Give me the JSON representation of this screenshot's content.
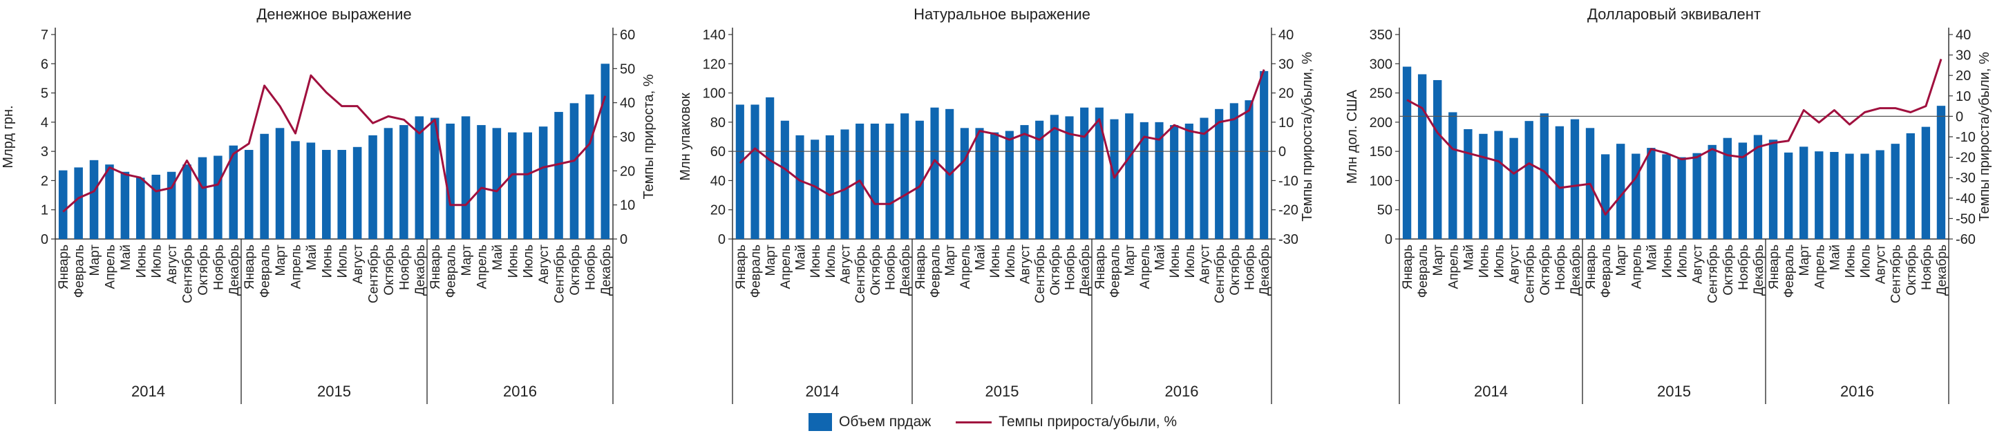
{
  "colors": {
    "bars": "#0f66b1",
    "line": "#a0103e",
    "axis": "#333333"
  },
  "legend": {
    "bars_label": "Объем прдаж",
    "line_label": "Темпы прироста/убыли, %"
  },
  "months": [
    "Январь",
    "Февраль",
    "Март",
    "Апрель",
    "Май",
    "Июнь",
    "Июль",
    "Август",
    "Сентябрь",
    "Октябрь",
    "Ноябрь",
    "Декабрь"
  ],
  "years": [
    "2014",
    "2015",
    "2016"
  ],
  "chart_data": [
    {
      "type": "bar+line",
      "title": "Денежное выражение",
      "ylabel": "Млрд грн.",
      "y2label": "Темпы прироста, %",
      "ylim": [
        0,
        7
      ],
      "y2lim": [
        0,
        60
      ],
      "yticks": [
        0,
        1,
        2,
        3,
        4,
        5,
        6,
        7
      ],
      "y2ticks": [
        0,
        10,
        20,
        30,
        40,
        50,
        60
      ],
      "bars": [
        2.35,
        2.45,
        2.7,
        2.55,
        2.3,
        2.1,
        2.2,
        2.3,
        2.55,
        2.8,
        2.85,
        3.2,
        3.05,
        3.6,
        3.8,
        3.35,
        3.3,
        3.05,
        3.05,
        3.15,
        3.55,
        3.8,
        3.9,
        4.2,
        4.15,
        3.95,
        4.2,
        3.9,
        3.8,
        3.65,
        3.65,
        3.85,
        4.35,
        4.65,
        4.95,
        6.0
      ],
      "line": [
        8,
        12,
        14,
        21,
        19,
        18,
        14,
        15,
        23,
        15,
        16,
        25,
        28,
        45,
        39,
        31,
        48,
        43,
        39,
        39,
        34,
        36,
        35,
        31,
        35,
        10,
        10,
        15,
        14,
        19,
        19,
        21,
        22,
        23,
        28,
        42
      ]
    },
    {
      "type": "bar+line",
      "title": "Натуральное выражение",
      "ylabel": "Млн упаковок",
      "y2label": "Темпы прироста/убыли, %",
      "ylim": [
        0,
        140
      ],
      "y2lim": [
        -30,
        40
      ],
      "yticks": [
        0,
        20,
        40,
        60,
        80,
        100,
        120,
        140
      ],
      "y2ticks": [
        -30,
        -20,
        -10,
        0,
        10,
        20,
        30,
        40
      ],
      "refline": 0,
      "bars": [
        92,
        92,
        97,
        81,
        71,
        68,
        71,
        75,
        79,
        79,
        79,
        86,
        81,
        90,
        89,
        76,
        76,
        73,
        74,
        78,
        81,
        85,
        84,
        90,
        90,
        82,
        86,
        80,
        80,
        78,
        79,
        83,
        89,
        93,
        95,
        115
      ],
      "line": [
        -4,
        1,
        -3,
        -6,
        -10,
        -12,
        -15,
        -13,
        -10,
        -18,
        -18,
        -15,
        -12,
        -3,
        -8,
        -3,
        7,
        6,
        4,
        6,
        4,
        8,
        6,
        5,
        11,
        -9,
        -2,
        5,
        4,
        9,
        7,
        6,
        10,
        11,
        14,
        28
      ]
    },
    {
      "type": "bar+line",
      "title": "Долларовый эквивалент",
      "ylabel": "Млн дол. США",
      "y2label": "Темпы прироста/убыли, %",
      "ylim": [
        0,
        350
      ],
      "y2lim": [
        -60,
        40
      ],
      "yticks": [
        0,
        50,
        100,
        150,
        200,
        250,
        300,
        350
      ],
      "y2ticks": [
        -60,
        -50,
        -40,
        -30,
        -20,
        -10,
        0,
        10,
        20,
        30,
        40
      ],
      "refline": 0,
      "bars": [
        295,
        282,
        272,
        217,
        188,
        180,
        185,
        173,
        202,
        215,
        193,
        205,
        190,
        145,
        163,
        146,
        156,
        145,
        140,
        147,
        161,
        173,
        165,
        178,
        170,
        148,
        158,
        150,
        149,
        146,
        146,
        152,
        163,
        181,
        192,
        228
      ],
      "line": [
        8,
        4,
        -8,
        -16,
        -18,
        -20,
        -22,
        -28,
        -23,
        -27,
        -35,
        -34,
        -33,
        -48,
        -39,
        -30,
        -16,
        -18,
        -21,
        -20,
        -16,
        -19,
        -20,
        -15,
        -13,
        -12,
        3,
        -3,
        3,
        -4,
        2,
        4,
        4,
        2,
        5,
        28
      ]
    }
  ]
}
